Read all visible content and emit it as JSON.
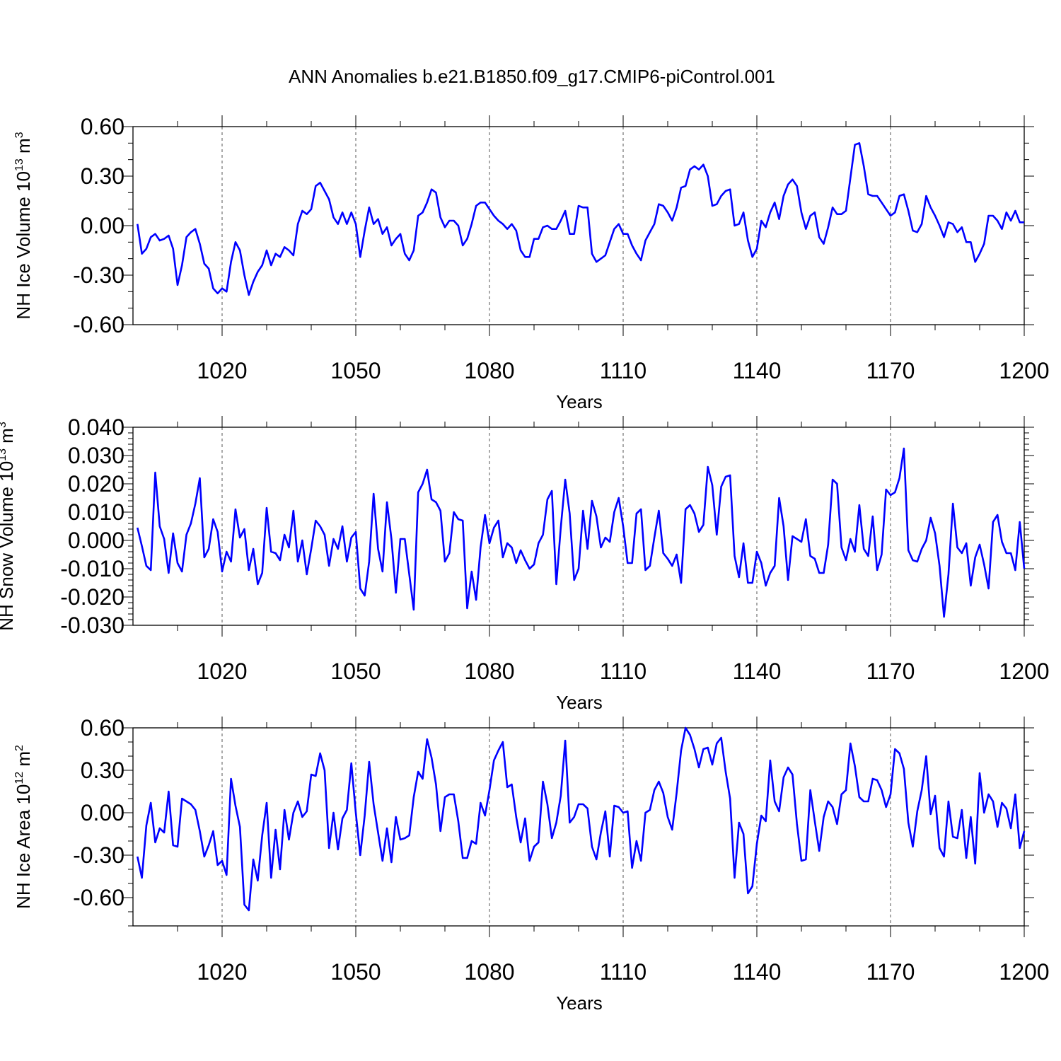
{
  "title": "ANN Anomalies b.e21.B1850.f09_g17.CMIP6-piControl.001",
  "colors": {
    "line": "#0000ff",
    "axis": "#000000",
    "grid": "#555555"
  },
  "chart_data": [
    {
      "type": "line",
      "name": "nh-ice-volume",
      "ylabel": {
        "base": "NH Ice Volume 10",
        "sup": "13",
        "unit": " m",
        "unit_sup": "3"
      },
      "xlabel": "Years",
      "xlim": [
        1000,
        1200
      ],
      "ylim": [
        -0.6,
        0.6
      ],
      "xticks": [
        1020,
        1050,
        1080,
        1110,
        1140,
        1170,
        1200
      ],
      "xtick_labels": [
        "1020",
        "1050",
        "1080",
        "1110",
        "1140",
        "1170",
        "1200"
      ],
      "yticks": [
        -0.6,
        -0.3,
        0.0,
        0.3,
        0.6
      ],
      "ytick_labels": [
        "-0.60",
        "-0.30",
        "0.00",
        "0.30",
        "0.60"
      ],
      "minor_y": 0.1,
      "grid": "vertical dashed at major x ticks",
      "x_start": 1001,
      "values": [
        0.01,
        -0.17,
        -0.14,
        -0.07,
        -0.05,
        -0.09,
        -0.08,
        -0.06,
        -0.14,
        -0.36,
        -0.24,
        -0.07,
        -0.04,
        -0.02,
        -0.11,
        -0.23,
        -0.26,
        -0.38,
        -0.41,
        -0.38,
        -0.4,
        -0.22,
        -0.1,
        -0.15,
        -0.3,
        -0.42,
        -0.34,
        -0.28,
        -0.24,
        -0.15,
        -0.24,
        -0.17,
        -0.19,
        -0.13,
        -0.15,
        -0.18,
        0.01,
        0.09,
        0.07,
        0.1,
        0.24,
        0.26,
        0.21,
        0.16,
        0.05,
        0.01,
        0.08,
        0.01,
        0.08,
        0.01,
        -0.19,
        -0.03,
        0.11,
        0.01,
        0.04,
        -0.05,
        -0.01,
        -0.12,
        -0.08,
        -0.05,
        -0.17,
        -0.21,
        -0.15,
        0.06,
        0.08,
        0.14,
        0.22,
        0.2,
        0.05,
        -0.01,
        0.03,
        0.03,
        0.0,
        -0.12,
        -0.08,
        0.01,
        0.12,
        0.14,
        0.14,
        0.1,
        0.06,
        0.03,
        0.01,
        -0.02,
        0.01,
        -0.03,
        -0.15,
        -0.19,
        -0.19,
        -0.08,
        -0.08,
        -0.01,
        0.0,
        -0.02,
        -0.02,
        0.03,
        0.09,
        -0.05,
        -0.05,
        0.12,
        0.11,
        0.11,
        -0.17,
        -0.22,
        -0.2,
        -0.18,
        -0.1,
        -0.02,
        0.01,
        -0.05,
        -0.05,
        -0.12,
        -0.17,
        -0.21,
        -0.09,
        -0.04,
        0.01,
        0.13,
        0.12,
        0.08,
        0.03,
        0.11,
        0.23,
        0.24,
        0.34,
        0.36,
        0.34,
        0.37,
        0.3,
        0.12,
        0.13,
        0.18,
        0.21,
        0.22,
        0.0,
        0.01,
        0.08,
        -0.09,
        -0.19,
        -0.14,
        0.03,
        -0.01,
        0.08,
        0.14,
        0.04,
        0.18,
        0.25,
        0.28,
        0.24,
        0.08,
        -0.02,
        0.06,
        0.08,
        -0.07,
        -0.11,
        -0.01,
        0.11,
        0.07,
        0.07,
        0.09,
        0.29,
        0.49,
        0.5,
        0.36,
        0.19,
        0.18,
        0.18,
        0.14,
        0.1,
        0.06,
        0.08,
        0.18,
        0.19,
        0.09,
        -0.03,
        -0.04,
        0.01,
        0.18,
        0.11,
        0.06,
        0.0,
        -0.07,
        0.02,
        0.01,
        -0.04,
        -0.01,
        -0.1,
        -0.1,
        -0.22,
        -0.17,
        -0.11,
        0.06,
        0.06,
        0.03,
        -0.02,
        0.08,
        0.03,
        0.09,
        0.02,
        0.02
      ]
    },
    {
      "type": "line",
      "name": "nh-snow-volume",
      "ylabel": {
        "base": "NH Snow Volume 10",
        "sup": "13",
        "unit": " m",
        "unit_sup": "3"
      },
      "xlabel": "Years",
      "xlim": [
        1000,
        1200
      ],
      "ylim": [
        -0.03,
        0.04
      ],
      "xticks": [
        1020,
        1050,
        1080,
        1110,
        1140,
        1170,
        1200
      ],
      "xtick_labels": [
        "1020",
        "1050",
        "1080",
        "1110",
        "1140",
        "1170",
        "1200"
      ],
      "yticks": [
        -0.03,
        -0.02,
        -0.01,
        0.0,
        0.01,
        0.02,
        0.03,
        0.04
      ],
      "ytick_labels": [
        "-0.030",
        "-0.020",
        "-0.010",
        "0.000",
        "0.010",
        "0.020",
        "0.030",
        "0.040"
      ],
      "minor_y": 0.002,
      "grid": "vertical dashed at major x ticks",
      "x_start": 1001,
      "values": [
        0.0045,
        -0.002,
        -0.009,
        -0.0105,
        0.024,
        0.005,
        0.0005,
        -0.0115,
        0.0025,
        -0.008,
        -0.011,
        0.002,
        0.006,
        0.013,
        0.022,
        -0.006,
        -0.003,
        0.0075,
        0.003,
        -0.011,
        -0.004,
        -0.0075,
        0.011,
        0.001,
        0.004,
        -0.0105,
        -0.003,
        -0.0155,
        -0.0115,
        0.0115,
        -0.004,
        -0.0045,
        -0.007,
        0.002,
        -0.0025,
        0.0105,
        -0.0075,
        0.0,
        -0.012,
        -0.003,
        0.007,
        0.005,
        0.002,
        -0.009,
        0.0005,
        -0.003,
        0.005,
        -0.0075,
        0.001,
        0.003,
        -0.017,
        -0.0195,
        -0.0075,
        0.0165,
        -0.003,
        -0.011,
        0.0135,
        0.0005,
        -0.0185,
        0.0005,
        0.0005,
        -0.012,
        -0.0245,
        0.017,
        0.02,
        0.025,
        0.0145,
        0.0135,
        0.0105,
        -0.0075,
        -0.0045,
        0.01,
        0.0075,
        0.007,
        -0.024,
        -0.011,
        -0.021,
        -0.0025,
        0.009,
        -0.001,
        0.0045,
        0.007,
        -0.006,
        -0.001,
        -0.0025,
        -0.008,
        -0.0035,
        -0.007,
        -0.01,
        -0.0085,
        -0.001,
        0.002,
        0.0145,
        0.0175,
        -0.0155,
        0.0045,
        0.0215,
        0.0095,
        -0.014,
        -0.01,
        0.0105,
        -0.003,
        0.014,
        0.0085,
        -0.0025,
        0.001,
        -0.0005,
        0.01,
        0.015,
        0.005,
        -0.008,
        -0.008,
        0.0095,
        0.011,
        -0.0105,
        -0.009,
        0.001,
        0.0105,
        -0.0045,
        -0.0065,
        -0.009,
        -0.005,
        -0.015,
        0.011,
        0.0125,
        0.0095,
        0.003,
        0.0055,
        0.026,
        0.0195,
        0.002,
        0.019,
        0.0225,
        0.023,
        -0.0055,
        -0.013,
        -0.001,
        -0.015,
        -0.015,
        -0.004,
        -0.008,
        -0.016,
        -0.0115,
        -0.009,
        0.015,
        0.005,
        -0.014,
        0.0015,
        0.0005,
        -0.0005,
        0.0075,
        -0.0055,
        -0.0065,
        -0.0115,
        -0.0115,
        -0.0015,
        0.0215,
        0.02,
        -0.0025,
        -0.007,
        0.0005,
        -0.004,
        0.0125,
        -0.003,
        -0.0055,
        0.0085,
        -0.0105,
        -0.005,
        0.018,
        0.016,
        0.017,
        0.022,
        0.0325,
        -0.0035,
        -0.007,
        -0.0075,
        -0.003,
        0.0,
        0.008,
        0.0025,
        -0.009,
        -0.027,
        -0.012,
        0.013,
        -0.0025,
        -0.0045,
        -0.001,
        -0.016,
        -0.006,
        -0.0015,
        -0.0085,
        -0.017,
        0.0065,
        0.009,
        -0.0005,
        -0.0045,
        -0.0045,
        -0.0105,
        0.0065,
        -0.01
      ]
    },
    {
      "type": "line",
      "name": "nh-ice-area",
      "ylabel": {
        "base": "NH Ice Area 10",
        "sup": "12",
        "unit": " m",
        "unit_sup": "2"
      },
      "xlabel": "Years",
      "xlim": [
        1000,
        1200
      ],
      "ylim": [
        -0.8,
        0.6
      ],
      "xticks": [
        1020,
        1050,
        1080,
        1110,
        1140,
        1170,
        1200
      ],
      "xtick_labels": [
        "1020",
        "1050",
        "1080",
        "1110",
        "1140",
        "1170",
        "1200"
      ],
      "yticks": [
        -0.6,
        -0.3,
        0.0,
        0.3,
        0.6
      ],
      "ytick_labels": [
        "-0.60",
        "-0.30",
        "0.00",
        "0.30",
        "0.60"
      ],
      "minor_y": 0.1,
      "grid": "vertical dashed at major x ticks",
      "x_start": 1001,
      "values": [
        -0.31,
        -0.46,
        -0.09,
        0.07,
        -0.21,
        -0.11,
        -0.14,
        0.15,
        -0.23,
        -0.24,
        0.1,
        0.08,
        0.06,
        0.02,
        -0.13,
        -0.31,
        -0.23,
        -0.13,
        -0.37,
        -0.34,
        -0.44,
        0.24,
        0.05,
        -0.1,
        -0.65,
        -0.69,
        -0.33,
        -0.48,
        -0.16,
        0.07,
        -0.46,
        -0.12,
        -0.4,
        0.02,
        -0.19,
        0.0,
        0.08,
        -0.03,
        0.01,
        0.27,
        0.26,
        0.42,
        0.3,
        -0.25,
        0.0,
        -0.26,
        -0.04,
        0.02,
        0.35,
        0.0,
        -0.3,
        -0.02,
        0.36,
        0.06,
        -0.14,
        -0.34,
        -0.11,
        -0.35,
        -0.03,
        -0.19,
        -0.18,
        -0.16,
        0.11,
        0.29,
        0.24,
        0.52,
        0.39,
        0.2,
        -0.13,
        0.11,
        0.13,
        0.13,
        -0.06,
        -0.32,
        -0.32,
        -0.2,
        -0.22,
        0.07,
        -0.02,
        0.16,
        0.37,
        0.44,
        0.5,
        0.18,
        0.2,
        -0.03,
        -0.21,
        -0.04,
        -0.34,
        -0.24,
        -0.21,
        0.22,
        0.06,
        -0.18,
        -0.07,
        0.12,
        0.51,
        -0.07,
        -0.03,
        0.06,
        0.06,
        0.03,
        -0.24,
        -0.33,
        -0.14,
        0.01,
        -0.31,
        0.05,
        0.04,
        0.0,
        0.01,
        -0.39,
        -0.2,
        -0.34,
        0.0,
        0.02,
        0.16,
        0.22,
        0.14,
        -0.03,
        -0.12,
        0.14,
        0.44,
        0.6,
        0.55,
        0.45,
        0.32,
        0.45,
        0.46,
        0.34,
        0.49,
        0.53,
        0.29,
        0.1,
        -0.46,
        -0.07,
        -0.15,
        -0.57,
        -0.52,
        -0.22,
        -0.02,
        -0.06,
        0.37,
        0.08,
        0.01,
        0.25,
        0.32,
        0.27,
        -0.08,
        -0.34,
        -0.33,
        0.16,
        -0.06,
        -0.27,
        -0.03,
        0.08,
        0.04,
        -0.08,
        0.13,
        0.16,
        0.49,
        0.33,
        0.11,
        0.08,
        0.08,
        0.24,
        0.23,
        0.16,
        0.04,
        0.13,
        0.45,
        0.42,
        0.31,
        -0.07,
        -0.24,
        0.01,
        0.16,
        0.4,
        -0.01,
        0.12,
        -0.25,
        -0.31,
        0.08,
        -0.17,
        -0.18,
        0.02,
        -0.32,
        -0.03,
        -0.36,
        0.28,
        0.0,
        0.13,
        0.08,
        -0.1,
        0.07,
        0.03,
        -0.11,
        0.13,
        -0.25,
        -0.13
      ]
    }
  ]
}
